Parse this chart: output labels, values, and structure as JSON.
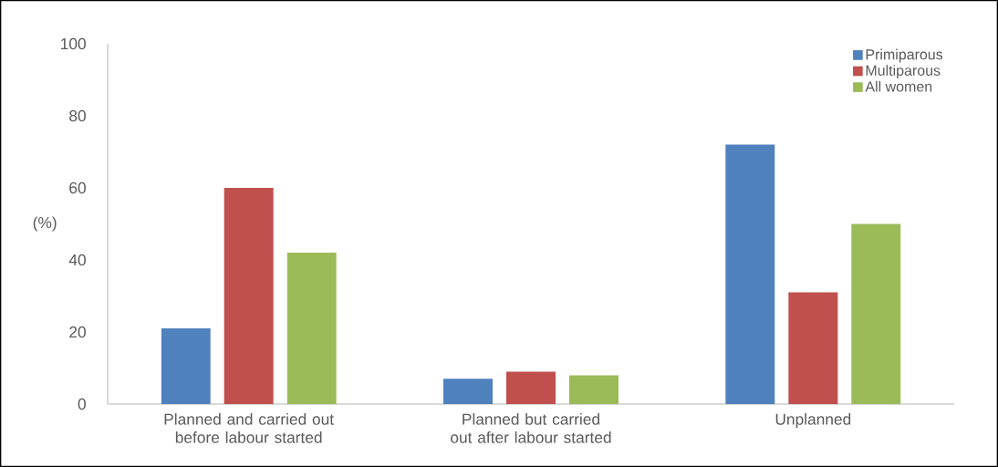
{
  "chart_data": {
    "type": "bar",
    "ylabel": "(%)",
    "categories": [
      "Planned and carried out before labour started",
      "Planned but carried out after labour started",
      "Unplanned"
    ],
    "series": [
      {
        "name": "Primiparous",
        "color": "#4f81bd",
        "values": [
          21,
          7,
          72
        ]
      },
      {
        "name": "Multiparous",
        "color": "#c0504d",
        "values": [
          60,
          9,
          31
        ]
      },
      {
        "name": "All women",
        "color": "#9bbb59",
        "values": [
          42,
          8,
          50
        ]
      }
    ],
    "ylim": [
      0,
      100
    ],
    "yticks": [
      0,
      20,
      40,
      60,
      80,
      100
    ],
    "legend": "top right"
  }
}
